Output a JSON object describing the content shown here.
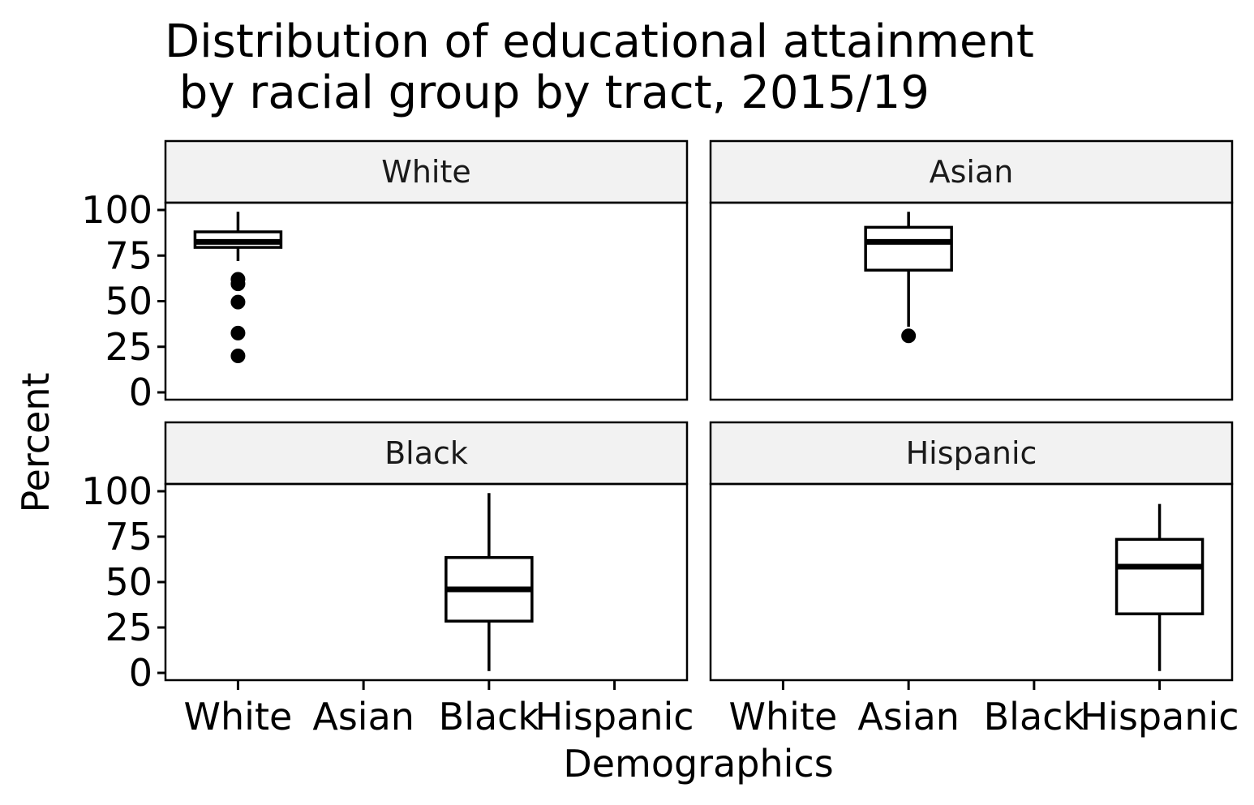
{
  "chart_data": {
    "type": "boxplot",
    "title_lines": [
      "Distribution of educational attainment",
      " by racial group by tract, 2015/19"
    ],
    "xlabel": "Demographics",
    "ylabel": "Percent",
    "categories": [
      "White",
      "Asian",
      "Black",
      "Hispanic"
    ],
    "yticks": [
      0,
      25,
      50,
      75,
      100
    ],
    "ylim": [
      -4,
      104
    ],
    "grid": false,
    "facets": [
      {
        "strip": "White",
        "box": {
          "category": "White",
          "whisker_low": 72,
          "q1": 79.5,
          "median": 82.5,
          "q3": 88,
          "whisker_high": 99
        },
        "outliers": [
          62,
          59.5,
          49.5,
          32.5,
          20
        ]
      },
      {
        "strip": "Asian",
        "box": {
          "category": "Asian",
          "whisker_low": 36,
          "q1": 67,
          "median": 82.5,
          "q3": 90.5,
          "whisker_high": 99
        },
        "outliers": [
          31
        ]
      },
      {
        "strip": "Black",
        "box": {
          "category": "Black",
          "whisker_low": 1,
          "q1": 28.5,
          "median": 46,
          "q3": 63.5,
          "whisker_high": 99
        },
        "outliers": []
      },
      {
        "strip": "Hispanic",
        "box": {
          "category": "Hispanic",
          "whisker_low": 1,
          "q1": 32.5,
          "median": 58.5,
          "q3": 73.5,
          "whisker_high": 93
        },
        "outliers": []
      }
    ]
  }
}
